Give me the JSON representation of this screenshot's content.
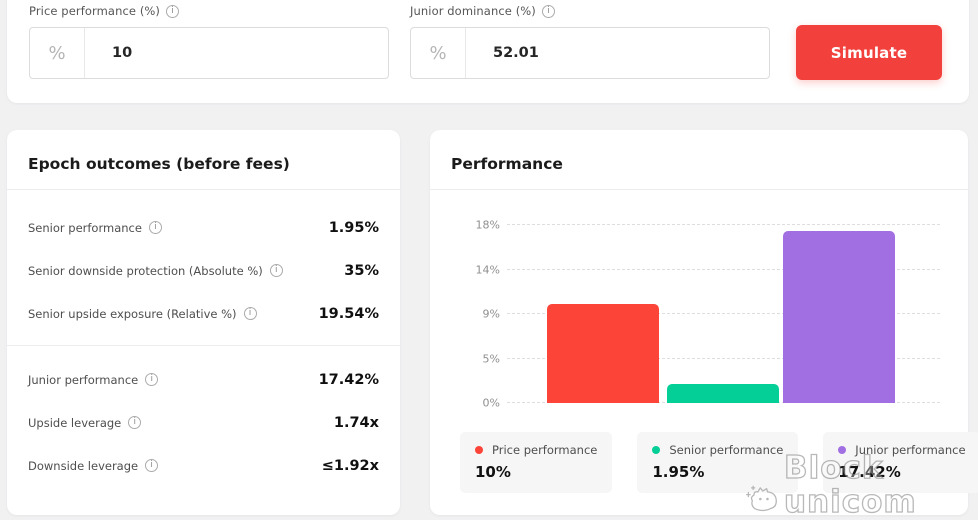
{
  "colors": {
    "accent_red": "#f2403d",
    "bar_red": "#fd4438",
    "bar_green": "#04cf96",
    "bar_purple": "#a26fe2",
    "page_bg": "#f1f1f2"
  },
  "toolbar": {
    "fields": [
      {
        "label": "Price performance (%)",
        "prefix": "%",
        "value": "10",
        "info_icon": "i"
      },
      {
        "label": "Junior dominance (%)",
        "prefix": "%",
        "value": "52.01",
        "info_icon": "i"
      }
    ],
    "simulate_label": "Simulate"
  },
  "outcomes": {
    "title": "Epoch outcomes (before fees)",
    "groups": [
      {
        "rows": [
          {
            "label": "Senior performance",
            "value": "1.95%"
          },
          {
            "label": "Senior downside protection (Absolute %)",
            "value": "35%"
          },
          {
            "label": "Senior upside exposure (Relative %)",
            "value": "19.54%"
          }
        ]
      },
      {
        "rows": [
          {
            "label": "Junior performance",
            "value": "17.42%"
          },
          {
            "label": "Upside leverage",
            "value": "1.74x"
          },
          {
            "label": "Downside leverage",
            "value": "≤1.92x"
          }
        ]
      }
    ]
  },
  "performance": {
    "title": "Performance",
    "legend": [
      {
        "label": "Price performance",
        "value": "10%",
        "color": "#fd4438"
      },
      {
        "label": "Senior performance",
        "value": "1.95%",
        "color": "#04cf96"
      },
      {
        "label": "Junior performance",
        "value": "17.42%",
        "color": "#a26fe2"
      }
    ]
  },
  "chart_data": {
    "type": "bar",
    "title": "Performance",
    "categories": [
      "Price performance",
      "Senior performance",
      "Junior performance"
    ],
    "values": [
      10,
      1.95,
      17.42
    ],
    "colors": [
      "#fd4438",
      "#04cf96",
      "#a26fe2"
    ],
    "ylim": [
      0,
      18
    ],
    "ytick_values": [
      0,
      4.5,
      9,
      13.5,
      18
    ],
    "ytick_labels": [
      "0%",
      "5%",
      "9%",
      "14%",
      "18%"
    ],
    "grid": "horizontal-dashed",
    "legend_position": "bottom"
  },
  "watermark": {
    "text": "Block unicom"
  }
}
